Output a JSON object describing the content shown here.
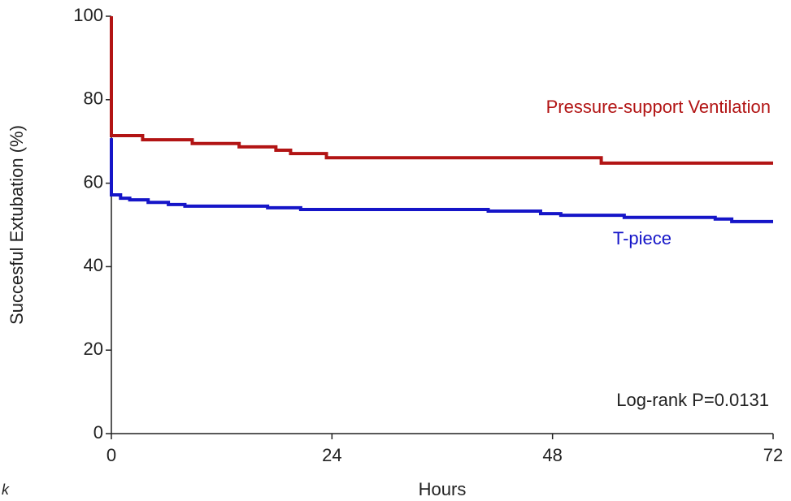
{
  "chart_data": {
    "type": "step",
    "xlabel": "Hours",
    "ylabel": "Succesful Extubation (%)",
    "annotation": "Log-rank P=0.0131",
    "panel_label": "k",
    "xlim": [
      0,
      72
    ],
    "xticks": [
      0,
      24,
      48,
      72
    ],
    "ylim": [
      0,
      100
    ],
    "yticks": [
      0,
      20,
      40,
      60,
      80,
      100
    ],
    "step": "post",
    "grid": false,
    "series": [
      {
        "name": "Pressure-support Ventilation",
        "color": "#b21414",
        "x": [
          0,
          0,
          3.4,
          8.8,
          13.9,
          17.9,
          19.5,
          23.4,
          53.3,
          72
        ],
        "values": [
          100,
          71.4,
          70.4,
          69.5,
          68.7,
          67.9,
          67.1,
          66.1,
          64.8,
          64.8
        ]
      },
      {
        "name": "T-piece",
        "color": "#1515c8",
        "x": [
          0,
          0,
          1,
          2,
          4,
          6.2,
          8,
          17,
          20.6,
          41,
          46.7,
          48.9,
          55.8,
          65.7,
          67.5,
          72
        ],
        "values": [
          70.8,
          57.2,
          56.4,
          56,
          55.4,
          54.9,
          54.5,
          54.1,
          53.7,
          53.3,
          52.7,
          52.3,
          51.8,
          51.4,
          50.8,
          50.8
        ]
      }
    ]
  }
}
